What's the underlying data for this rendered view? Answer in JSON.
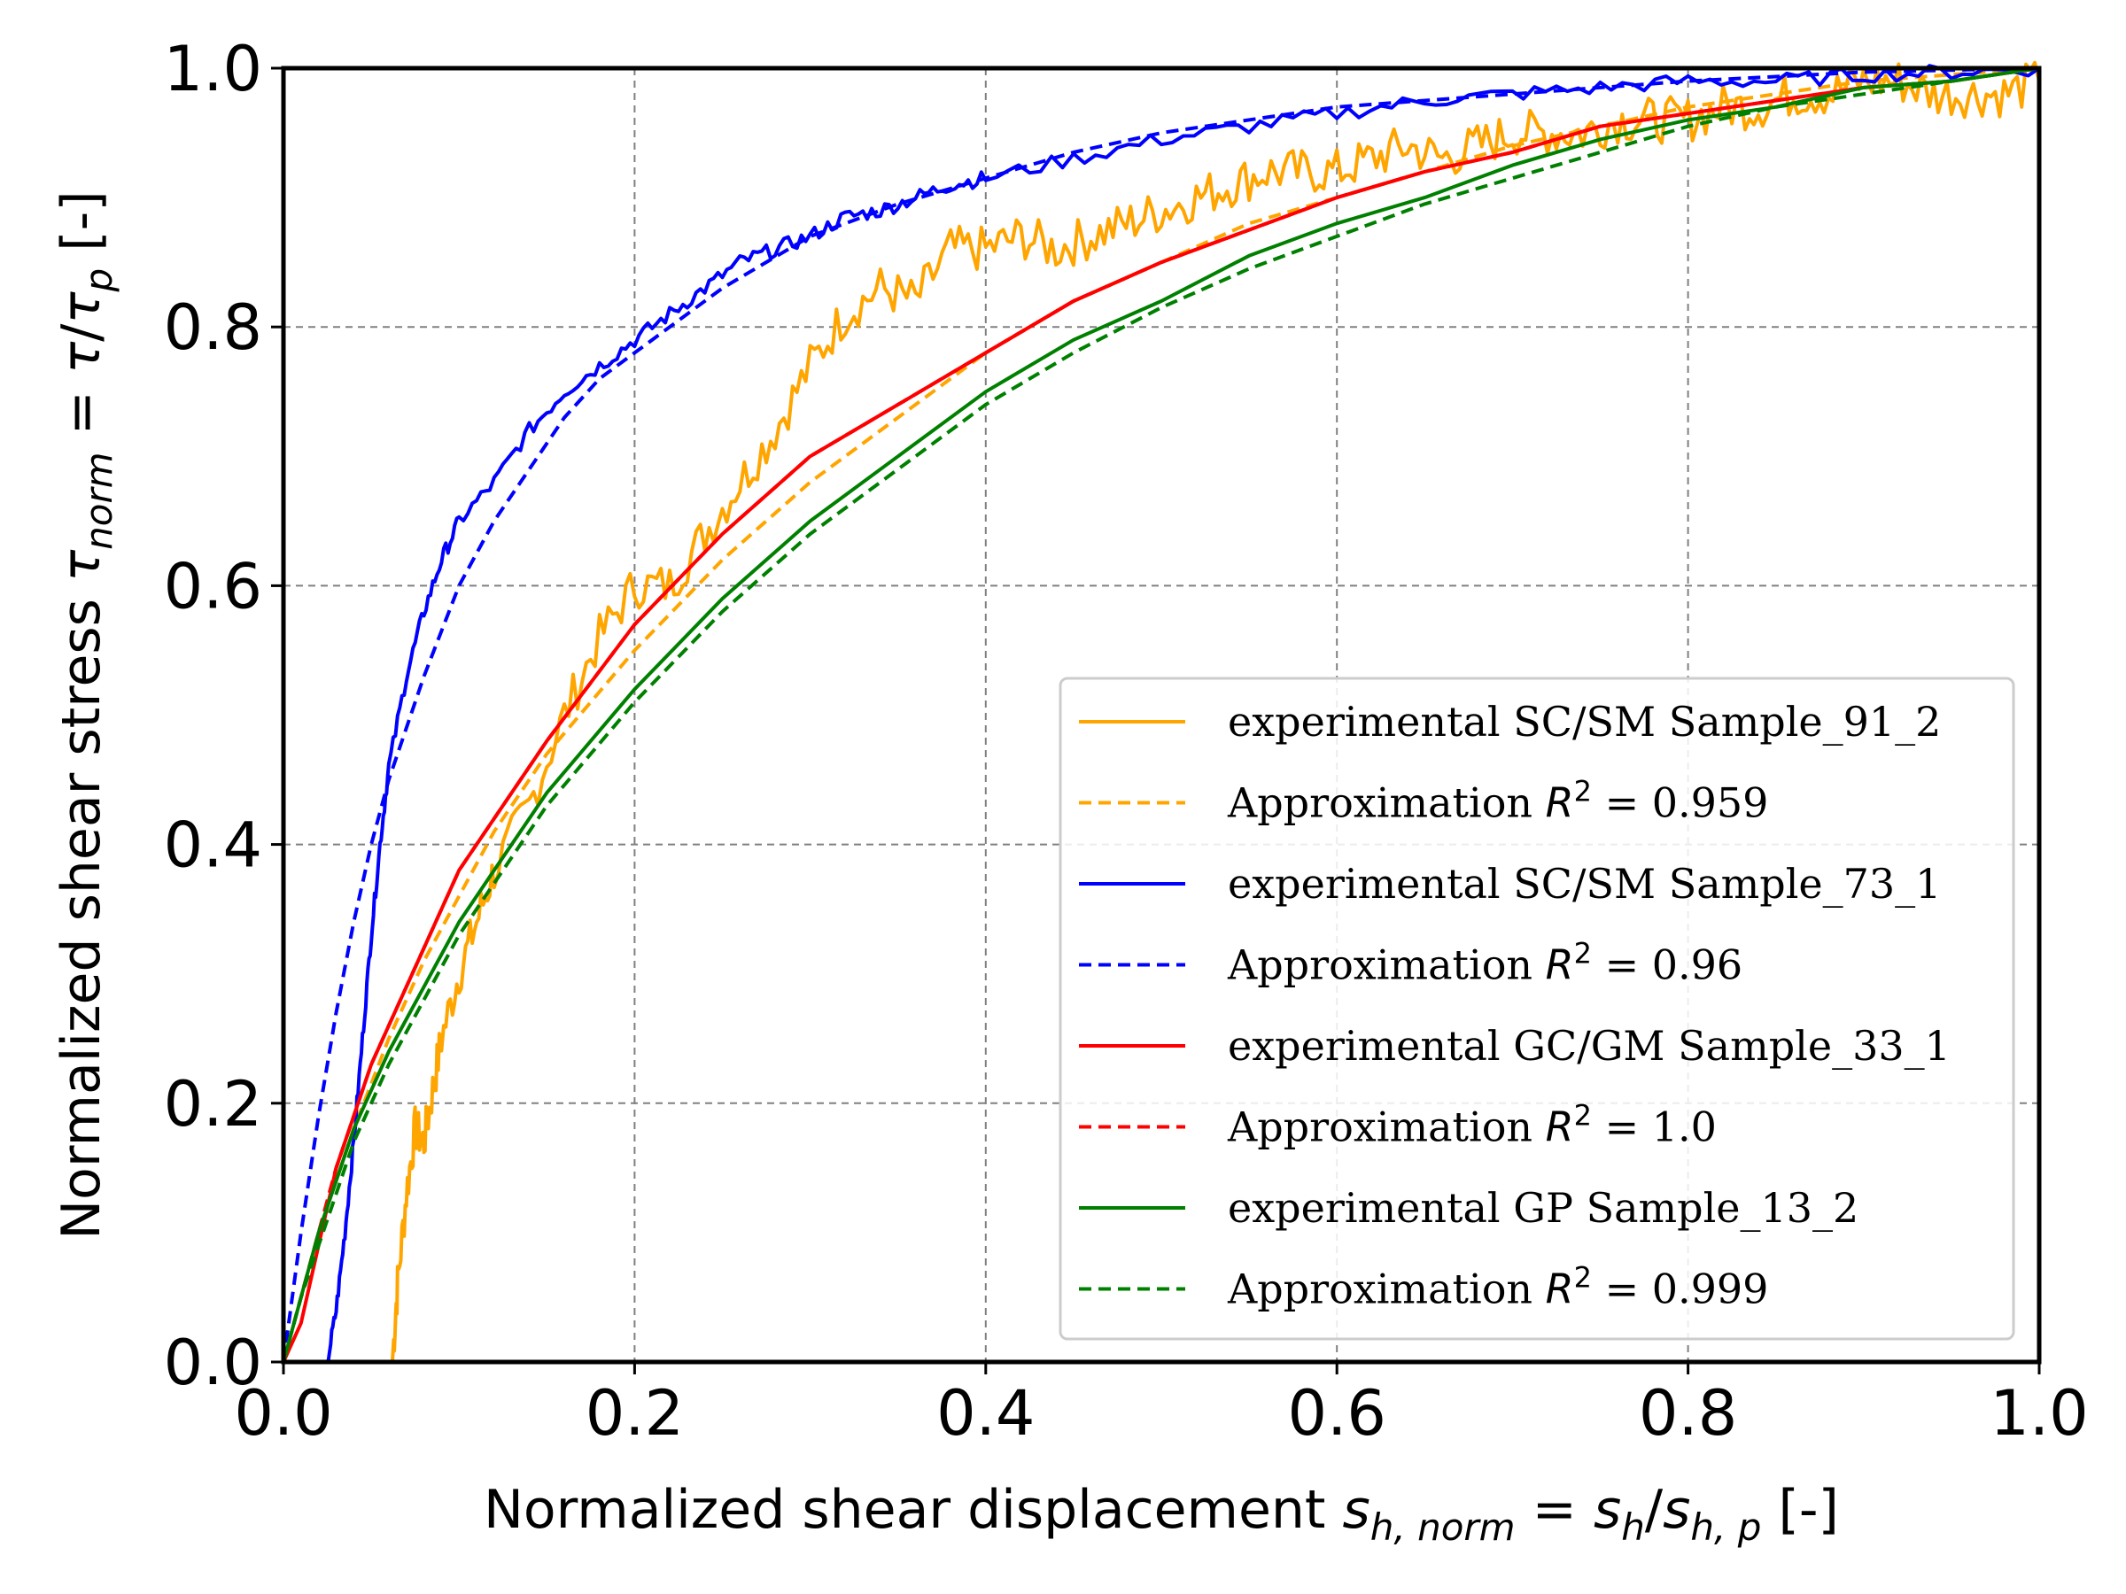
{
  "chart_data": {
    "type": "line",
    "xlabel": {
      "text": "Normalized shear displacement ",
      "math_main": "s",
      "math_sub": "h, norm",
      "eq": " = ",
      "math_main2": "s",
      "math_sub2": "h",
      "slash": "/",
      "math_main3": "s",
      "math_sub3": "h, p",
      "unit": " [-]"
    },
    "ylabel": {
      "text": "Normalized shear stress ",
      "math_main": "τ",
      "math_sub": "norm",
      "eq": " = ",
      "math_main2": "τ",
      "slash": "/",
      "math_main3": "τ",
      "math_sub3": "p",
      "unit": " [-]"
    },
    "xlim": [
      0.0,
      1.0
    ],
    "ylim": [
      0.0,
      1.0
    ],
    "xticks": [
      "0.0",
      "0.2",
      "0.4",
      "0.6",
      "0.8",
      "1.0"
    ],
    "yticks": [
      "0.0",
      "0.2",
      "0.4",
      "0.6",
      "0.8",
      "1.0"
    ],
    "grid": true,
    "legend_position": "lower-right",
    "series": [
      {
        "name": "experimental SC/SM Sample_91_2",
        "color": "#FFA500",
        "style": "solid",
        "noisy": true,
        "x": [
          0.062,
          0.065,
          0.07,
          0.075,
          0.08,
          0.085,
          0.09,
          0.1,
          0.11,
          0.12,
          0.14,
          0.16,
          0.18,
          0.2,
          0.22,
          0.24,
          0.26,
          0.28,
          0.3,
          0.32,
          0.34,
          0.36,
          0.38,
          0.4,
          0.42,
          0.44,
          0.46,
          0.48,
          0.5,
          0.52,
          0.54,
          0.56,
          0.58,
          0.6,
          0.62,
          0.64,
          0.66,
          0.68,
          0.7,
          0.72,
          0.74,
          0.76,
          0.78,
          0.8,
          0.82,
          0.84,
          0.86,
          0.88,
          0.9,
          0.92,
          0.94,
          0.96,
          0.98,
          1.0
        ],
        "y": [
          0.0,
          0.06,
          0.13,
          0.18,
          0.17,
          0.21,
          0.25,
          0.3,
          0.34,
          0.38,
          0.43,
          0.5,
          0.56,
          0.6,
          0.6,
          0.64,
          0.68,
          0.72,
          0.77,
          0.81,
          0.83,
          0.82,
          0.86,
          0.86,
          0.87,
          0.86,
          0.87,
          0.88,
          0.89,
          0.9,
          0.91,
          0.92,
          0.92,
          0.92,
          0.93,
          0.94,
          0.93,
          0.94,
          0.95,
          0.95,
          0.95,
          0.96,
          0.96,
          0.96,
          0.97,
          0.97,
          0.98,
          0.98,
          0.99,
          0.99,
          0.98,
          0.98,
          0.98,
          0.99
        ]
      },
      {
        "name": "Approximation R² = 0.959",
        "legend_prefix": "Approximation ",
        "legend_math": "R",
        "legend_sup": "2",
        "legend_value": " = 0.959",
        "color": "#FFA500",
        "style": "dashed",
        "x": [
          0.0,
          0.02,
          0.04,
          0.06,
          0.08,
          0.1,
          0.12,
          0.15,
          0.2,
          0.25,
          0.3,
          0.35,
          0.4,
          0.45,
          0.5,
          0.55,
          0.6,
          0.65,
          0.7,
          0.75,
          0.8,
          0.85,
          0.9,
          0.95,
          1.0
        ],
        "y": [
          0.0,
          0.1,
          0.18,
          0.25,
          0.31,
          0.36,
          0.41,
          0.47,
          0.55,
          0.62,
          0.68,
          0.73,
          0.78,
          0.82,
          0.85,
          0.88,
          0.9,
          0.92,
          0.94,
          0.955,
          0.97,
          0.98,
          0.99,
          0.995,
          1.0
        ]
      },
      {
        "name": "experimental SC/SM Sample_73_1",
        "color": "#0000FF",
        "style": "solid",
        "noisy": true,
        "x": [
          0.025,
          0.03,
          0.035,
          0.04,
          0.045,
          0.05,
          0.055,
          0.06,
          0.07,
          0.08,
          0.09,
          0.1,
          0.12,
          0.14,
          0.16,
          0.18,
          0.2,
          0.22,
          0.24,
          0.26,
          0.28,
          0.3,
          0.32,
          0.34,
          0.36,
          0.38,
          0.4,
          0.45,
          0.5,
          0.55,
          0.6,
          0.65,
          0.7,
          0.75,
          0.8,
          0.85,
          0.9,
          0.95,
          1.0
        ],
        "y": [
          0.0,
          0.04,
          0.1,
          0.17,
          0.25,
          0.33,
          0.4,
          0.46,
          0.53,
          0.58,
          0.62,
          0.65,
          0.68,
          0.72,
          0.75,
          0.77,
          0.79,
          0.81,
          0.83,
          0.85,
          0.86,
          0.87,
          0.885,
          0.89,
          0.9,
          0.91,
          0.915,
          0.93,
          0.945,
          0.955,
          0.965,
          0.975,
          0.98,
          0.985,
          0.99,
          0.99,
          0.995,
          0.997,
          1.0
        ]
      },
      {
        "name": "Approximation R² = 0.96",
        "legend_prefix": "Approximation ",
        "legend_math": "R",
        "legend_sup": "2",
        "legend_value": " = 0.96",
        "color": "#0000FF",
        "style": "dashed",
        "x": [
          0.0,
          0.01,
          0.02,
          0.03,
          0.04,
          0.05,
          0.06,
          0.08,
          0.1,
          0.12,
          0.14,
          0.16,
          0.18,
          0.2,
          0.25,
          0.3,
          0.35,
          0.4,
          0.45,
          0.5,
          0.6,
          0.7,
          0.8,
          0.9,
          1.0
        ],
        "y": [
          0.0,
          0.1,
          0.19,
          0.27,
          0.34,
          0.4,
          0.45,
          0.53,
          0.6,
          0.65,
          0.69,
          0.73,
          0.76,
          0.78,
          0.83,
          0.87,
          0.895,
          0.915,
          0.935,
          0.95,
          0.97,
          0.98,
          0.99,
          0.997,
          1.0
        ]
      },
      {
        "name": "experimental GC/GM Sample_33_1",
        "color": "#FF0000",
        "style": "solid",
        "noisy": false,
        "x": [
          0.0,
          0.01,
          0.02,
          0.03,
          0.04,
          0.05,
          0.06,
          0.08,
          0.1,
          0.12,
          0.15,
          0.2,
          0.25,
          0.3,
          0.35,
          0.4,
          0.45,
          0.5,
          0.55,
          0.6,
          0.65,
          0.7,
          0.75,
          0.8,
          0.85,
          0.9,
          0.95,
          1.0
        ],
        "y": [
          0.0,
          0.03,
          0.09,
          0.15,
          0.19,
          0.23,
          0.26,
          0.32,
          0.38,
          0.42,
          0.48,
          0.57,
          0.64,
          0.7,
          0.74,
          0.78,
          0.82,
          0.85,
          0.875,
          0.9,
          0.92,
          0.935,
          0.955,
          0.965,
          0.975,
          0.985,
          0.99,
          1.0
        ]
      },
      {
        "name": "Approximation R² = 1.0",
        "legend_prefix": "Approximation ",
        "legend_math": "R",
        "legend_sup": "2",
        "legend_value": " = 1.0",
        "color": "#FF0000",
        "style": "dashed",
        "x": [
          0.0,
          0.01,
          0.02,
          0.03,
          0.04,
          0.05,
          0.06,
          0.08,
          0.1,
          0.12,
          0.15,
          0.2,
          0.25,
          0.3,
          0.35,
          0.4,
          0.45,
          0.5,
          0.55,
          0.6,
          0.65,
          0.7,
          0.75,
          0.8,
          0.85,
          0.9,
          0.95,
          1.0
        ],
        "y": [
          0.0,
          0.05,
          0.1,
          0.15,
          0.19,
          0.23,
          0.26,
          0.32,
          0.38,
          0.42,
          0.48,
          0.57,
          0.64,
          0.7,
          0.74,
          0.78,
          0.82,
          0.85,
          0.875,
          0.9,
          0.92,
          0.935,
          0.955,
          0.965,
          0.975,
          0.985,
          0.99,
          1.0
        ]
      },
      {
        "name": "experimental GP Sample_13_2",
        "color": "#008000",
        "style": "solid",
        "noisy": false,
        "x": [
          0.0,
          0.01,
          0.02,
          0.03,
          0.04,
          0.05,
          0.06,
          0.08,
          0.1,
          0.12,
          0.15,
          0.2,
          0.25,
          0.3,
          0.35,
          0.4,
          0.45,
          0.5,
          0.55,
          0.6,
          0.65,
          0.7,
          0.75,
          0.8,
          0.85,
          0.9,
          0.95,
          1.0
        ],
        "y": [
          0.0,
          0.05,
          0.1,
          0.14,
          0.18,
          0.21,
          0.24,
          0.29,
          0.34,
          0.38,
          0.44,
          0.52,
          0.59,
          0.65,
          0.7,
          0.75,
          0.79,
          0.82,
          0.855,
          0.88,
          0.9,
          0.925,
          0.945,
          0.96,
          0.97,
          0.985,
          0.99,
          1.0
        ]
      },
      {
        "name": "Approximation R² = 0.999",
        "legend_prefix": "Approximation ",
        "legend_math": "R",
        "legend_sup": "2",
        "legend_value": " = 0.999",
        "color": "#008000",
        "style": "dashed",
        "x": [
          0.0,
          0.01,
          0.02,
          0.03,
          0.04,
          0.05,
          0.06,
          0.08,
          0.1,
          0.12,
          0.15,
          0.2,
          0.25,
          0.3,
          0.35,
          0.4,
          0.45,
          0.5,
          0.55,
          0.6,
          0.65,
          0.7,
          0.75,
          0.8,
          0.85,
          0.9,
          0.95,
          1.0
        ],
        "y": [
          0.0,
          0.05,
          0.09,
          0.13,
          0.17,
          0.2,
          0.23,
          0.28,
          0.33,
          0.37,
          0.43,
          0.51,
          0.58,
          0.64,
          0.69,
          0.74,
          0.78,
          0.815,
          0.845,
          0.87,
          0.895,
          0.915,
          0.935,
          0.955,
          0.97,
          0.98,
          0.99,
          1.0
        ]
      }
    ]
  }
}
